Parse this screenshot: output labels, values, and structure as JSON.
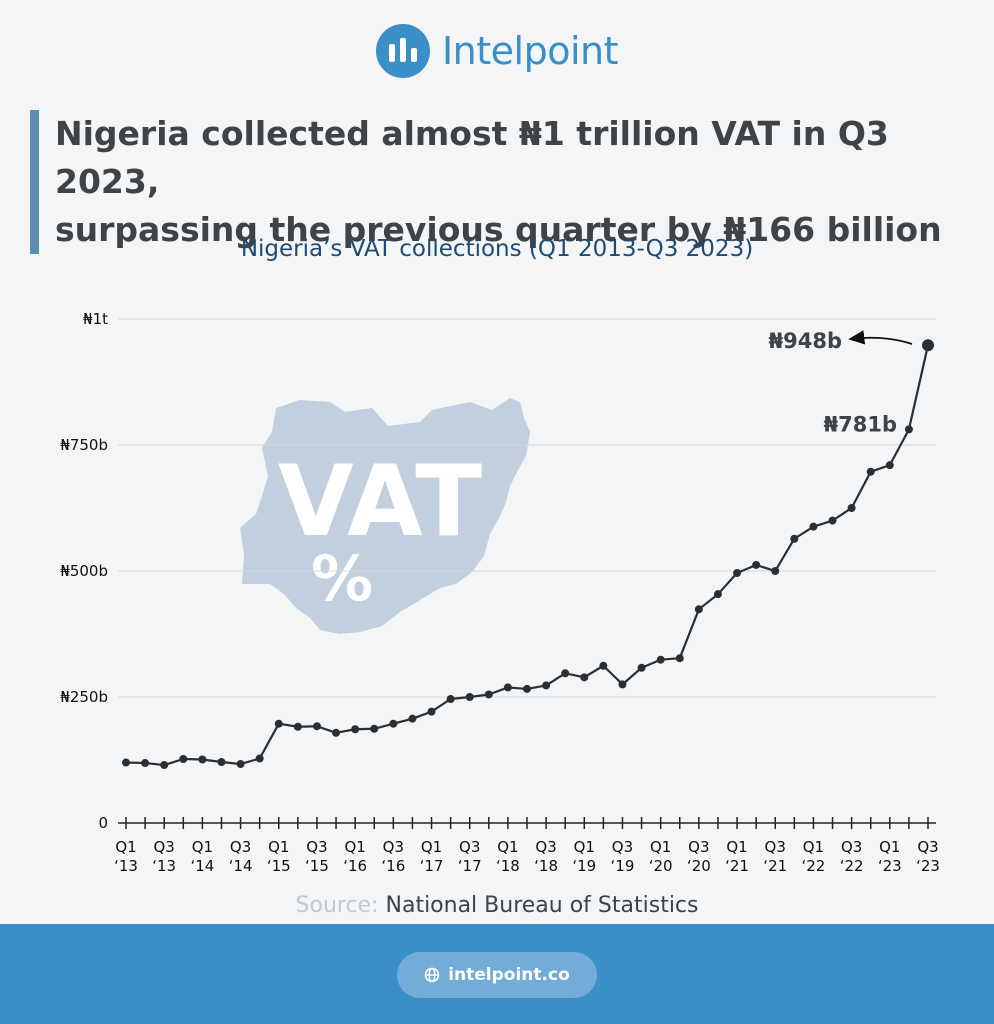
{
  "brand": {
    "name": "Intelpoint",
    "icon": "bar-chart-icon"
  },
  "headline": {
    "line1": "Nigeria collected almost ₦1 trillion VAT in Q3 2023,",
    "line2": "surpassing the previous quarter by ₦166 billion"
  },
  "source": {
    "label": "Source:",
    "org": "National Bureau of Statistics"
  },
  "footer": {
    "url": "intelpoint.co",
    "icon": "globe-icon"
  },
  "colors": {
    "accent": "#3a8fc6",
    "line": "#2b2f33",
    "title": "#1e4a73",
    "map": "#c2cfdf"
  },
  "watermark": {
    "text": "VAT",
    "symbol": "%",
    "icon": "nigeria-map-icon"
  },
  "chart_data": {
    "type": "line",
    "title": "Nigeria’s VAT collections (Q1 2013-Q3 2023)",
    "ylim": [
      0,
      1000
    ],
    "yticks": [
      {
        "value": 0,
        "label": "0"
      },
      {
        "value": 250,
        "label": "₦250b"
      },
      {
        "value": 500,
        "label": "₦500b"
      },
      {
        "value": 750,
        "label": "₦750b"
      },
      {
        "value": 1000,
        "label": "₦1t"
      }
    ],
    "grid": true,
    "xticks": [
      [
        "Q1",
        "‘13"
      ],
      [
        "Q3",
        "‘13"
      ],
      [
        "Q1",
        "‘14"
      ],
      [
        "Q3",
        "‘14"
      ],
      [
        "Q1",
        "‘15"
      ],
      [
        "Q3",
        "‘15"
      ],
      [
        "Q1",
        "‘16"
      ],
      [
        "Q3",
        "‘16"
      ],
      [
        "Q1",
        "‘17"
      ],
      [
        "Q3",
        "‘17"
      ],
      [
        "Q1",
        "‘18"
      ],
      [
        "Q3",
        "‘18"
      ],
      [
        "Q1",
        "‘19"
      ],
      [
        "Q3",
        "‘19"
      ],
      [
        "Q1",
        "‘20"
      ],
      [
        "Q3",
        "‘20"
      ],
      [
        "Q1",
        "‘21"
      ],
      [
        "Q3",
        "‘21"
      ],
      [
        "Q1",
        "‘22"
      ],
      [
        "Q3",
        "‘22"
      ],
      [
        "Q1",
        "‘23"
      ],
      [
        "Q3",
        "‘23"
      ]
    ],
    "categories": [
      "Q1 2013",
      "Q2 2013",
      "Q3 2013",
      "Q4 2013",
      "Q1 2014",
      "Q2 2014",
      "Q3 2014",
      "Q4 2014",
      "Q1 2015",
      "Q2 2015",
      "Q3 2015",
      "Q4 2015",
      "Q1 2016",
      "Q2 2016",
      "Q3 2016",
      "Q4 2016",
      "Q1 2017",
      "Q2 2017",
      "Q3 2017",
      "Q4 2017",
      "Q1 2018",
      "Q2 2018",
      "Q3 2018",
      "Q4 2018",
      "Q1 2019",
      "Q2 2019",
      "Q3 2019",
      "Q4 2019",
      "Q1 2020",
      "Q2 2020",
      "Q3 2020",
      "Q4 2020",
      "Q1 2021",
      "Q2 2021",
      "Q3 2021",
      "Q4 2021",
      "Q1 2022",
      "Q2 2022",
      "Q3 2022",
      "Q4 2022",
      "Q1 2023",
      "Q2 2023",
      "Q3 2023"
    ],
    "values": [
      120,
      119,
      115,
      127,
      126,
      121,
      117,
      128,
      197,
      191,
      192,
      179,
      186,
      187,
      197,
      207,
      221,
      246,
      250,
      255,
      269,
      266,
      273,
      297,
      289,
      312,
      275,
      308,
      324,
      327,
      424,
      454,
      496,
      512,
      500,
      564,
      588,
      600,
      625,
      697,
      710,
      781,
      948
    ],
    "annotations": [
      {
        "index": 42,
        "label": "₦948b"
      },
      {
        "index": 41,
        "label": "₦781b"
      }
    ]
  }
}
